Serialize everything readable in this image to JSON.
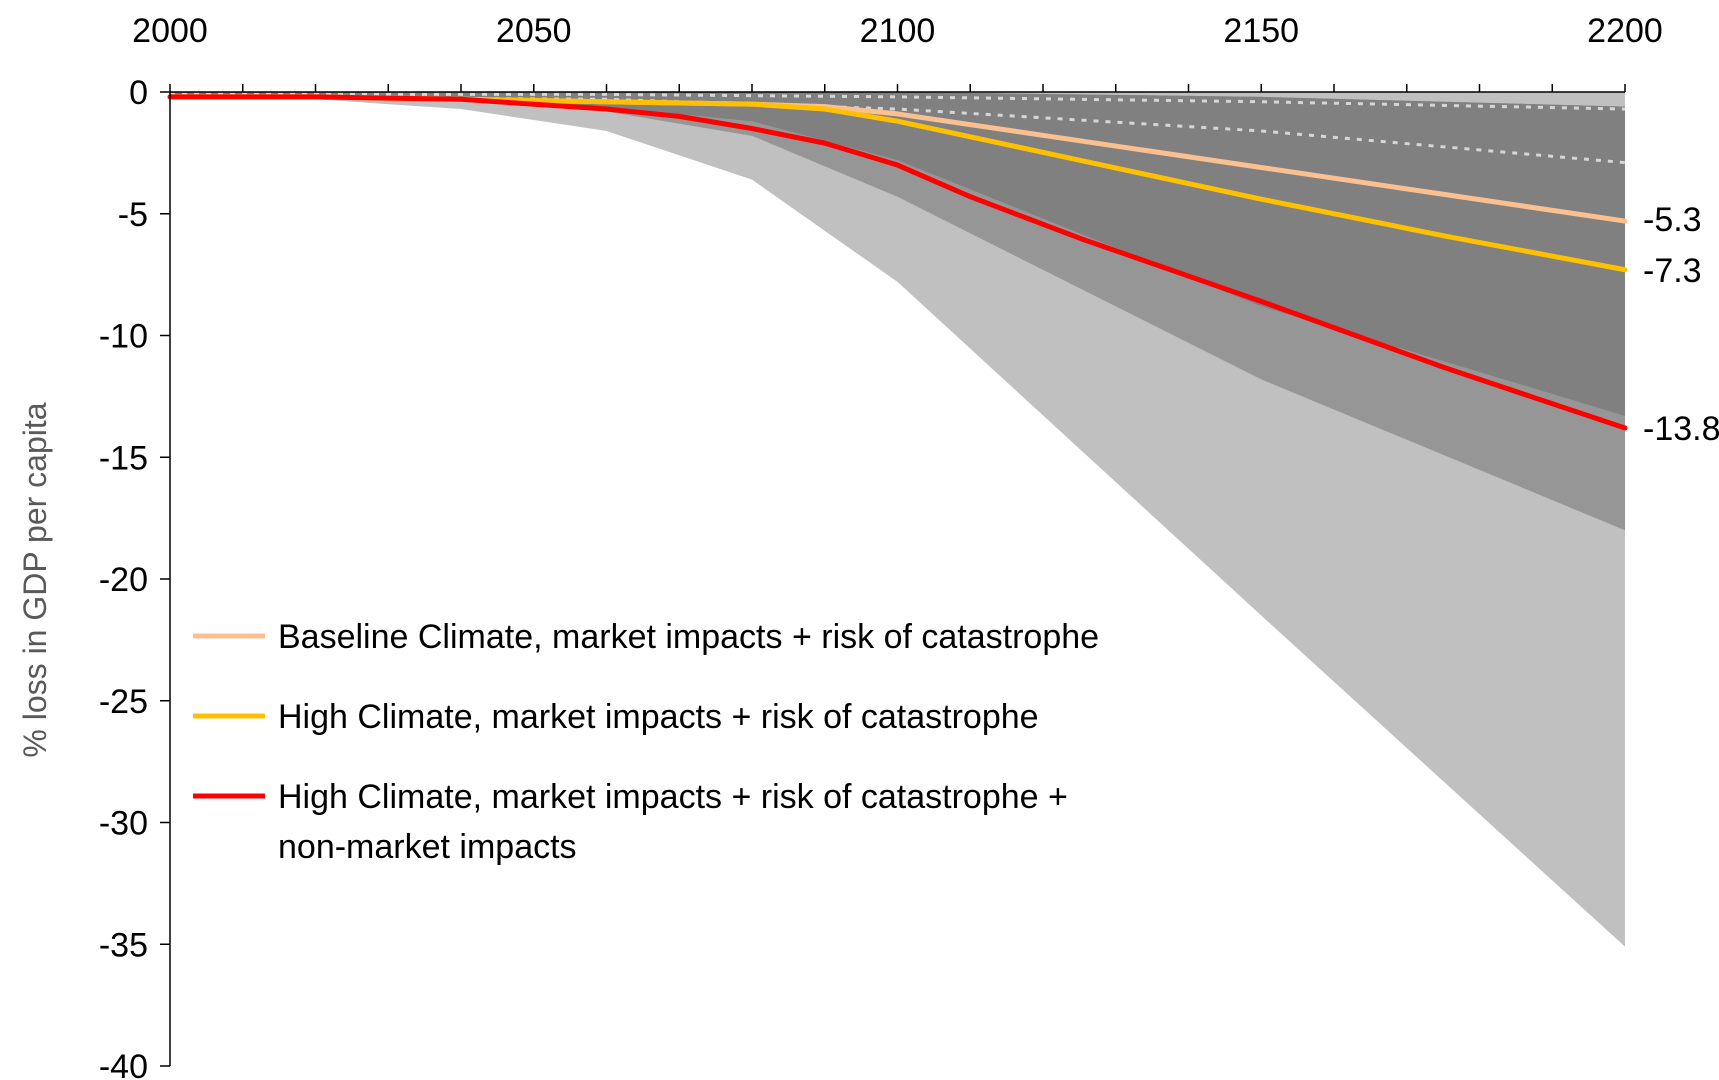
{
  "chart_data": {
    "type": "area",
    "title": "",
    "xlabel": "",
    "ylabel": "% loss in GDP per capita",
    "xlim": [
      2000,
      2200
    ],
    "ylim": [
      -40,
      0
    ],
    "x_axis_position": "top",
    "x_ticks": [
      2000,
      2050,
      2100,
      2150,
      2200
    ],
    "x_tick_labels": [
      "2000",
      "2050",
      "2100",
      "2150",
      "2200"
    ],
    "y_ticks": [
      0,
      -5,
      -10,
      -15,
      -20,
      -25,
      -30,
      -35,
      -40
    ],
    "y_tick_labels": [
      "0",
      "-5",
      "-10",
      "-15",
      "-20",
      "-25",
      "-30",
      "-35",
      "-40"
    ],
    "grid": false,
    "legend_position": "bottom-left",
    "bands": [
      {
        "color": "#c0c0c0",
        "x": [
          2000,
          2020,
          2040,
          2060,
          2080,
          2100,
          2150,
          2200
        ],
        "upper": [
          0,
          0,
          0,
          0,
          0,
          0,
          0,
          0
        ],
        "lower": [
          -0.1,
          -0.3,
          -0.7,
          -1.6,
          -3.6,
          -7.8,
          -21.5,
          -35.1
        ]
      },
      {
        "color": "#969696",
        "x": [
          2000,
          2020,
          2040,
          2060,
          2080,
          2100,
          2150,
          2200
        ],
        "upper": [
          0,
          0,
          0,
          0,
          0,
          0,
          -0.2,
          -0.6
        ],
        "lower": [
          -0.1,
          -0.2,
          -0.4,
          -0.8,
          -1.8,
          -4.3,
          -11.8,
          -18.0
        ]
      },
      {
        "color": "#808080",
        "x": [
          2000,
          2020,
          2040,
          2060,
          2080,
          2100,
          2150,
          2200
        ],
        "upper": [
          0,
          0,
          0,
          0,
          0,
          0,
          -0.2,
          -0.6
        ],
        "lower": [
          -0.1,
          -0.2,
          -0.3,
          -0.6,
          -1.2,
          -2.8,
          -8.8,
          -13.3
        ]
      }
    ],
    "dotted_lines": [
      {
        "color": "#d6d6d6",
        "x": [
          2000,
          2060,
          2100,
          2150,
          2200
        ],
        "values": [
          -0.1,
          -0.1,
          -0.2,
          -0.4,
          -0.7
        ]
      },
      {
        "color": "#d6d6d6",
        "x": [
          2000,
          2060,
          2100,
          2150,
          2200
        ],
        "values": [
          -0.2,
          -0.3,
          -0.7,
          -1.6,
          -2.9
        ]
      }
    ],
    "series": [
      {
        "name": "Baseline Climate, market impacts + risk of catastrophe",
        "color": "#fac090",
        "x": [
          2000,
          2020,
          2040,
          2060,
          2080,
          2090,
          2100,
          2125,
          2150,
          2175,
          2200
        ],
        "values": [
          -0.2,
          -0.2,
          -0.3,
          -0.4,
          -0.5,
          -0.6,
          -0.9,
          -2.0,
          -3.1,
          -4.2,
          -5.3
        ],
        "end_label": "-5.3"
      },
      {
        "name": "High Climate, market impacts + risk of catastrophe",
        "color": "#ffc000",
        "x": [
          2000,
          2020,
          2040,
          2060,
          2080,
          2090,
          2100,
          2125,
          2150,
          2175,
          2200
        ],
        "values": [
          -0.2,
          -0.2,
          -0.3,
          -0.4,
          -0.5,
          -0.7,
          -1.2,
          -2.8,
          -4.4,
          -5.9,
          -7.3
        ],
        "end_label": "-7.3"
      },
      {
        "name": "High Climate, market impacts + risk of catastrophe + non-market impacts",
        "legend_lines": [
          "High Climate, market impacts + risk of catastrophe +",
          "non-market impacts"
        ],
        "color": "#ff0000",
        "x": [
          2000,
          2020,
          2040,
          2060,
          2070,
          2080,
          2090,
          2100,
          2110,
          2125,
          2150,
          2175,
          2200
        ],
        "values": [
          -0.2,
          -0.2,
          -0.3,
          -0.7,
          -1.0,
          -1.5,
          -2.1,
          -3.0,
          -4.3,
          -6.0,
          -8.6,
          -11.3,
          -13.8
        ],
        "end_label": "-13.8"
      }
    ]
  }
}
